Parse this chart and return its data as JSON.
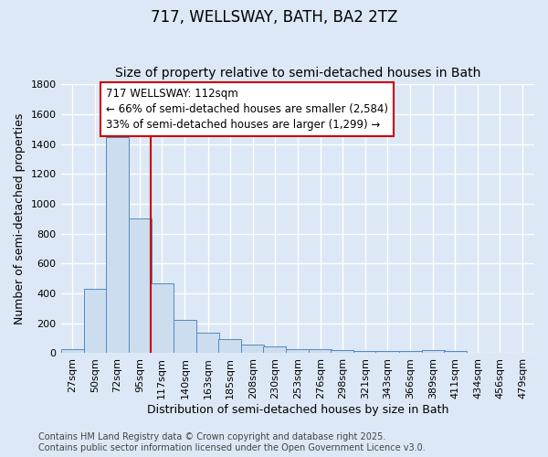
{
  "title1": "717, WELLSWAY, BATH, BA2 2TZ",
  "title2": "Size of property relative to semi-detached houses in Bath",
  "xlabel": "Distribution of semi-detached houses by size in Bath",
  "ylabel": "Number of semi-detached properties",
  "bins": [
    27,
    50,
    72,
    95,
    117,
    140,
    163,
    185,
    208,
    230,
    253,
    276,
    298,
    321,
    343,
    366,
    389,
    411,
    434,
    456,
    479
  ],
  "bin_width": 23,
  "values": [
    30,
    430,
    1450,
    900,
    470,
    225,
    135,
    95,
    60,
    45,
    30,
    25,
    20,
    18,
    15,
    12,
    20,
    12,
    5,
    3,
    2
  ],
  "bar_color": "#ccddf0",
  "bar_edge_color": "#5588bb",
  "red_line_x": 117,
  "annotation_title": "717 WELLSWAY: 112sqm",
  "annotation_line1": "← 66% of semi-detached houses are smaller (2,584)",
  "annotation_line2": "33% of semi-detached houses are larger (1,299) →",
  "annotation_box_facecolor": "#ffffff",
  "annotation_box_edgecolor": "#cc0000",
  "red_line_color": "#cc0000",
  "ylim_max": 1800,
  "yticks": [
    0,
    200,
    400,
    600,
    800,
    1000,
    1200,
    1400,
    1600,
    1800
  ],
  "footer1": "Contains HM Land Registry data © Crown copyright and database right 2025.",
  "footer2": "Contains public sector information licensed under the Open Government Licence v3.0.",
  "fig_facecolor": "#dce8f5",
  "plot_facecolor": "#dce8f5",
  "grid_color": "#ffffff",
  "title1_fontsize": 12,
  "title2_fontsize": 10,
  "axis_label_fontsize": 9,
  "tick_fontsize": 8,
  "annotation_fontsize": 8.5,
  "footer_fontsize": 7
}
